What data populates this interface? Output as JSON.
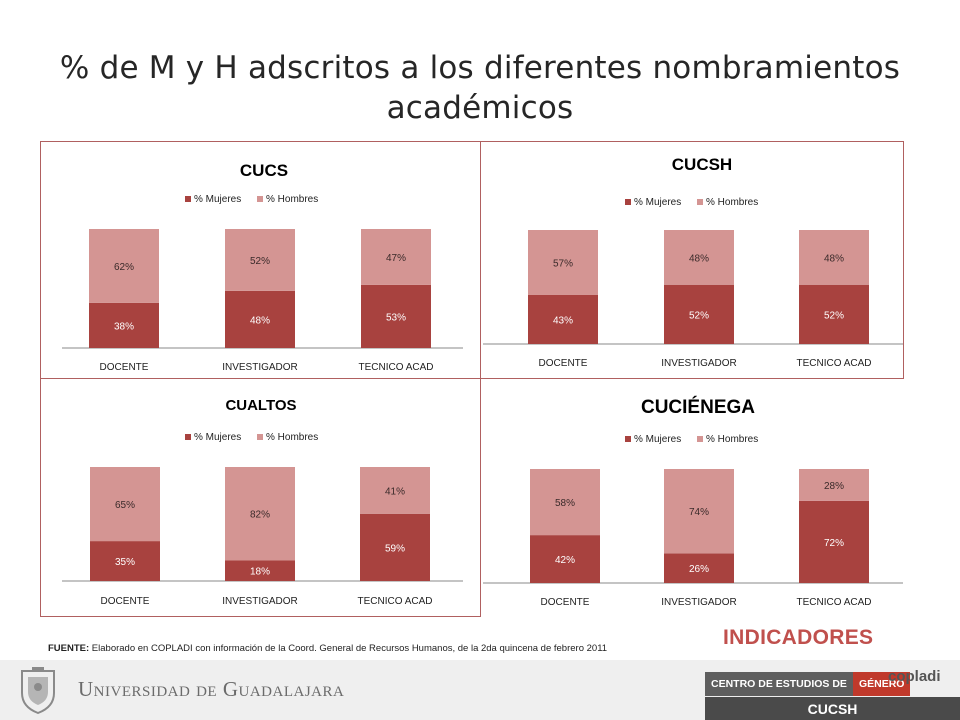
{
  "title": "% de M y H adscritos a los diferentes nombramientos académicos",
  "colors": {
    "mujeres": "#a8423f",
    "hombres": "#d49593",
    "frame": "#b06060",
    "accent": "#c0504d"
  },
  "chart_data": [
    {
      "type": "bar",
      "stacked": true,
      "title": "CUCS",
      "categories": [
        "DOCENTE",
        "INVESTIGADOR",
        "TECNICO ACAD"
      ],
      "series": [
        {
          "name": "% Mujeres",
          "values": [
            38,
            48,
            53
          ],
          "labels": [
            "38%",
            "48%",
            "53%"
          ]
        },
        {
          "name": "% Hombres",
          "values": [
            62,
            52,
            47
          ],
          "labels": [
            "62%",
            "52%",
            "47%"
          ]
        }
      ],
      "ylim": [
        0,
        100
      ],
      "legend": "top"
    },
    {
      "type": "bar",
      "stacked": true,
      "title": "CUCSH",
      "categories": [
        "DOCENTE",
        "INVESTIGADOR",
        "TECNICO ACAD"
      ],
      "series": [
        {
          "name": "% Mujeres",
          "values": [
            43,
            52,
            52
          ],
          "labels": [
            "43%",
            "52%",
            "52%"
          ]
        },
        {
          "name": "% Hombres",
          "values": [
            57,
            48,
            48
          ],
          "labels": [
            "57%",
            "48%",
            "48%"
          ]
        }
      ],
      "ylim": [
        0,
        100
      ],
      "legend": "top"
    },
    {
      "type": "bar",
      "stacked": true,
      "title": "CUALTOS",
      "categories": [
        "DOCENTE",
        "INVESTIGADOR",
        "TECNICO ACAD"
      ],
      "series": [
        {
          "name": "% Mujeres",
          "values": [
            35,
            18,
            59
          ],
          "labels": [
            "35%",
            "18%",
            "59%"
          ]
        },
        {
          "name": "% Hombres",
          "values": [
            65,
            82,
            41
          ],
          "labels": [
            "65%",
            "82%",
            "41%"
          ]
        }
      ],
      "ylim": [
        0,
        100
      ],
      "legend": "top"
    },
    {
      "type": "bar",
      "stacked": true,
      "title": "CUCIÉNEGA",
      "categories": [
        "DOCENTE",
        "INVESTIGADOR",
        "TECNICO ACAD"
      ],
      "series": [
        {
          "name": "% Mujeres",
          "values": [
            42,
            26,
            72
          ],
          "labels": [
            "42%",
            "26%",
            "72%"
          ]
        },
        {
          "name": "% Hombres",
          "values": [
            58,
            74,
            28
          ],
          "labels": [
            "58%",
            "74%",
            "28%"
          ]
        }
      ],
      "ylim": [
        0,
        100
      ],
      "legend": "top"
    }
  ],
  "footnote": {
    "label": "FUENTE:",
    "text": " Elaborado en COPLADI con información de la Coord. General de Recursos Humanos, de la 2da quincena de febrero 2011"
  },
  "indicadores": "INDICADORES",
  "footer": {
    "university": "Universidad de Guadalajara",
    "ceg_left": "CENTRO DE ESTUDIOS DE",
    "ceg_right": "GÉNERO",
    "cucsh": "CUCSH",
    "copladi": "copladi"
  }
}
